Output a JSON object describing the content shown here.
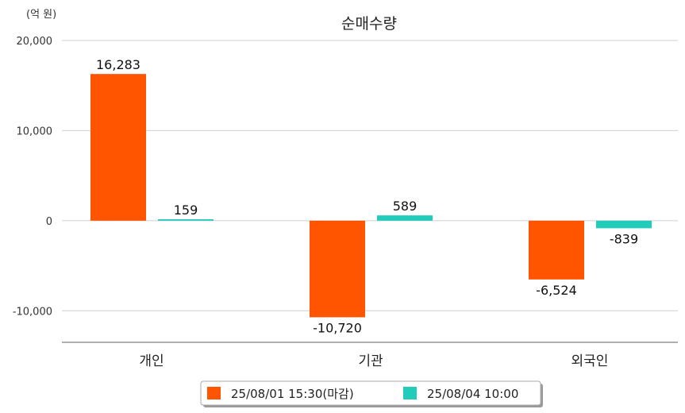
{
  "chart_data": {
    "type": "bar",
    "title": "순매수량",
    "unit_label": "(억 원)",
    "categories": [
      "개인",
      "기관",
      "외국인"
    ],
    "series": [
      {
        "name": "25/08/01 15:30(마감)",
        "color": "#ff5500",
        "values": [
          16283,
          -10720,
          -6524
        ],
        "labels": [
          "16,283",
          "-10,720",
          "-6,524"
        ]
      },
      {
        "name": "25/08/04 10:00",
        "color": "#22ccbb",
        "values": [
          159,
          589,
          -839
        ],
        "labels": [
          "159",
          "589",
          "-839"
        ]
      }
    ],
    "ylim": [
      -13500,
      20000
    ],
    "yticks": [
      20000,
      10000,
      0,
      -10000
    ],
    "ytick_labels": [
      "20,000",
      "10,000",
      "0",
      "-10,000"
    ],
    "grid": true,
    "legend_position": "bottom"
  }
}
